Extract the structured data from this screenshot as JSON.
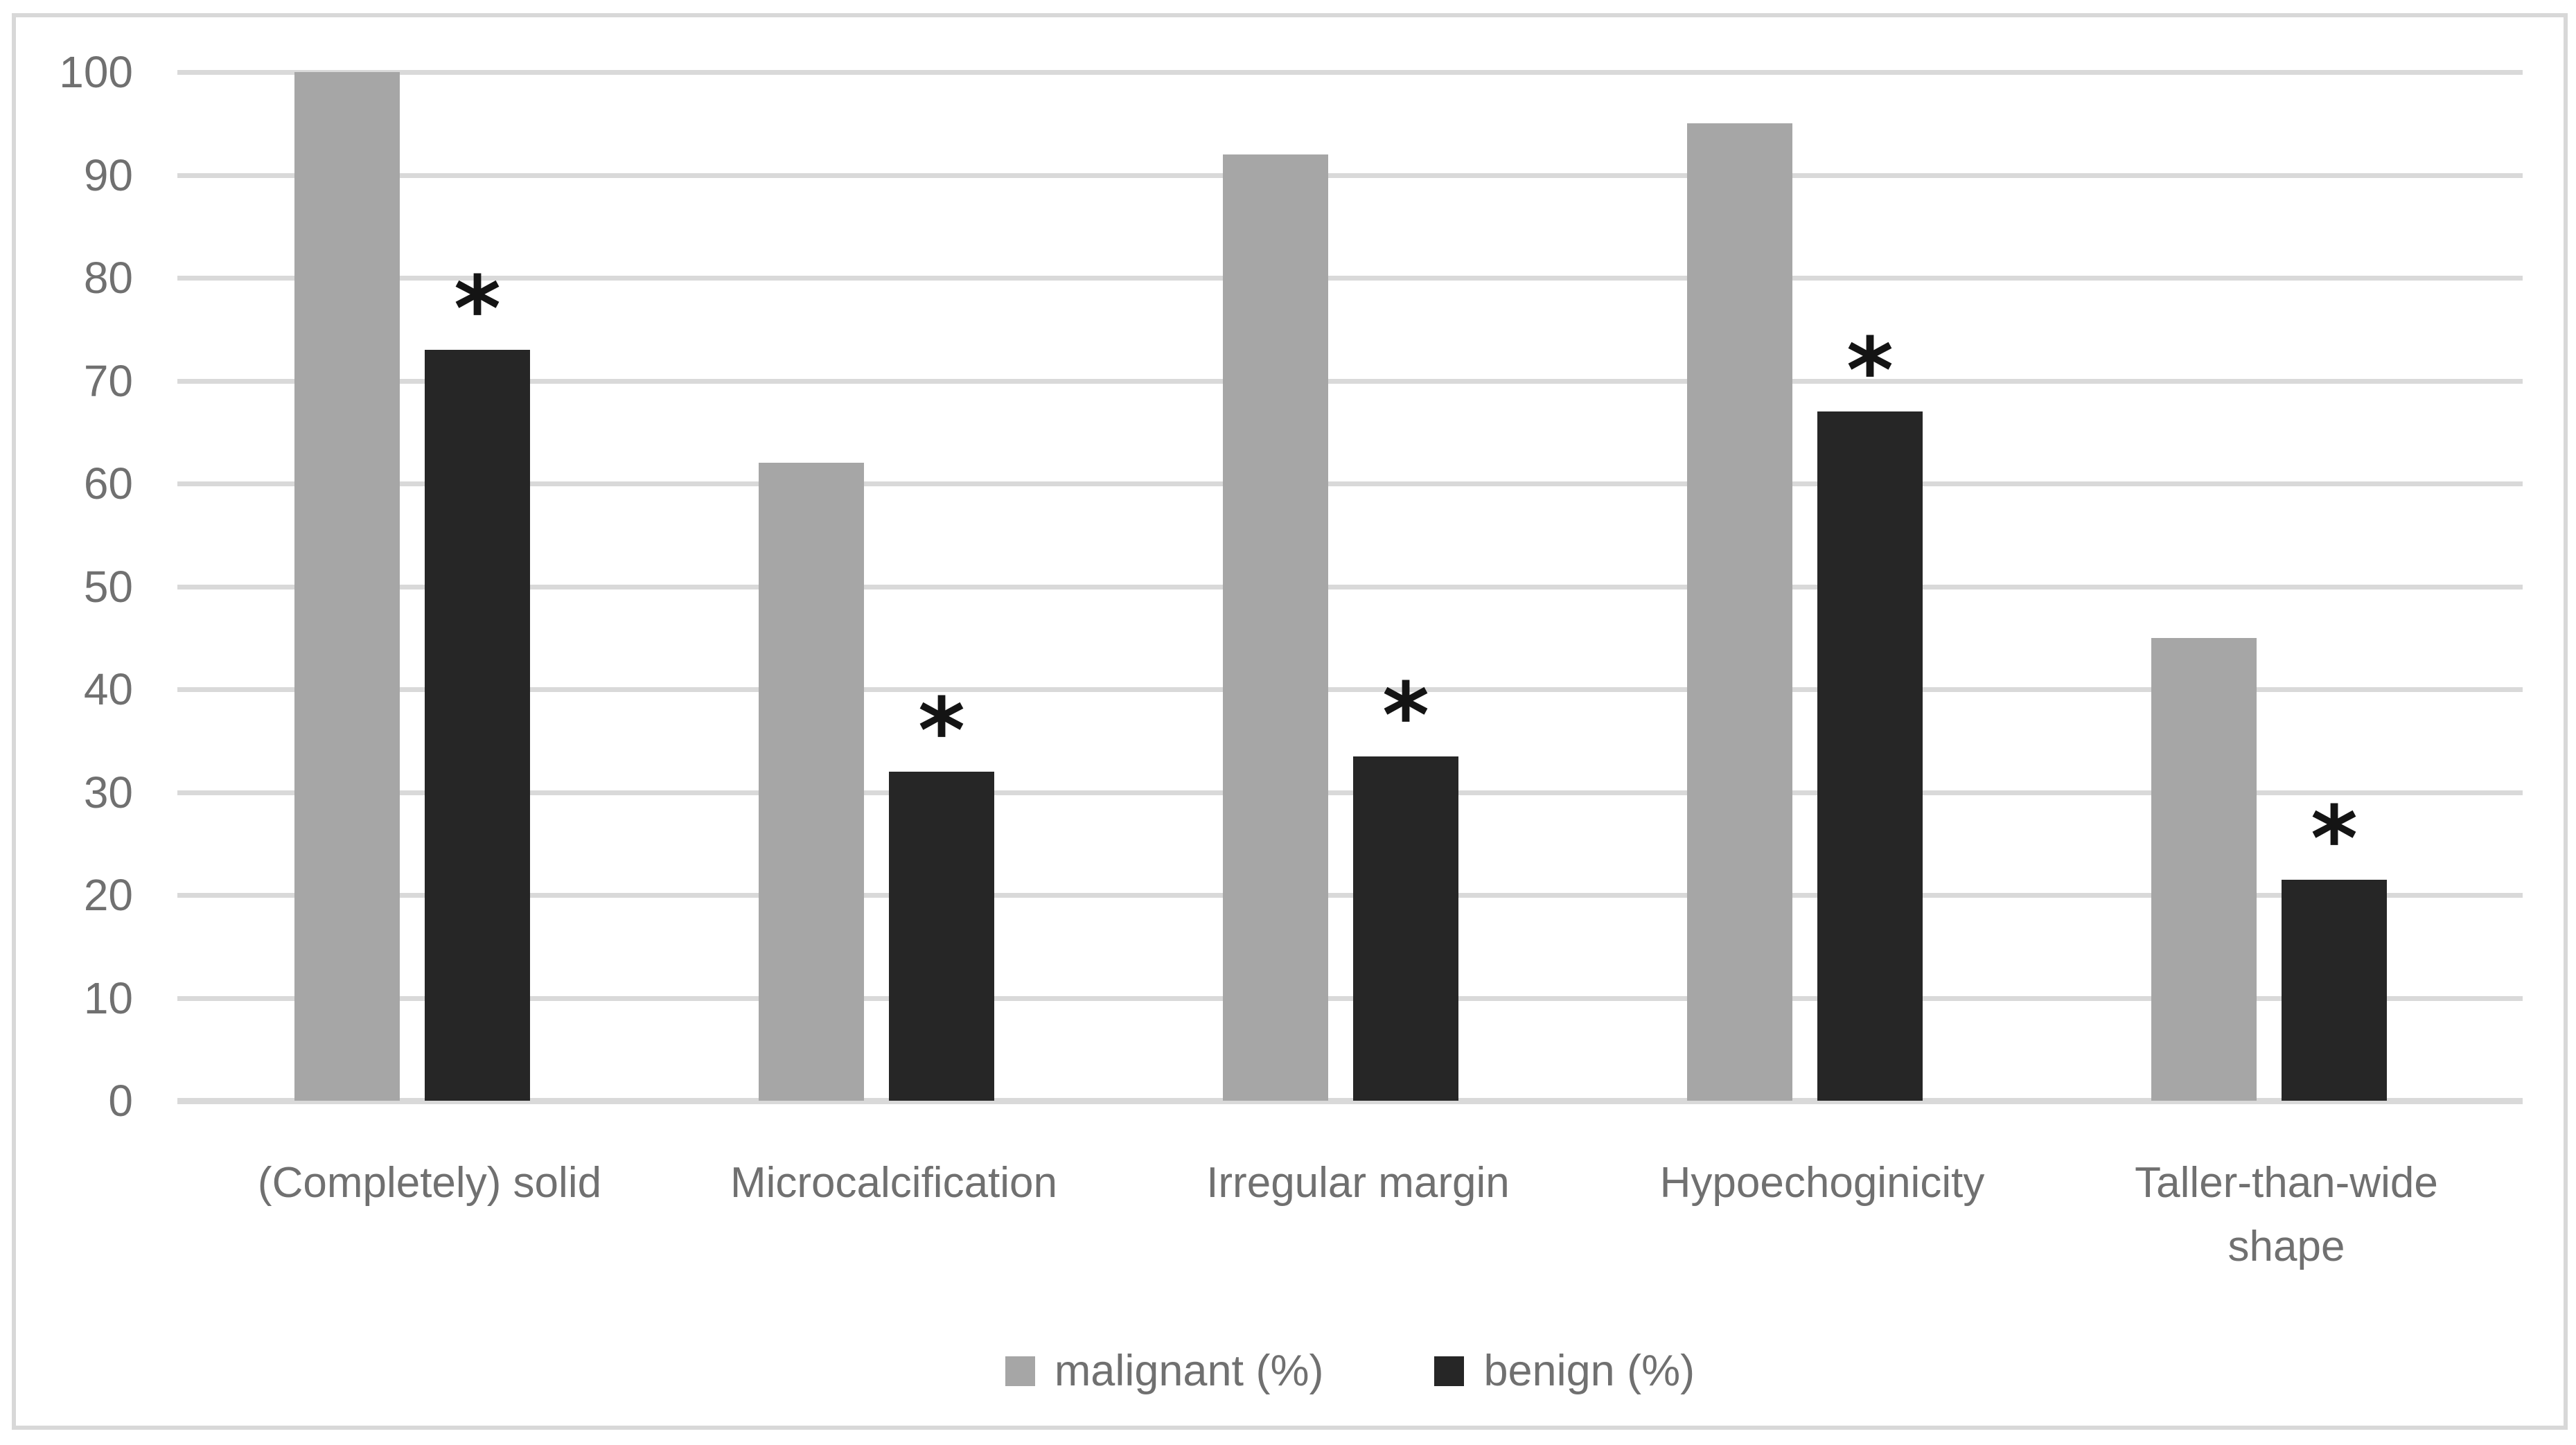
{
  "chart_data": {
    "type": "bar",
    "title": "",
    "xlabel": "",
    "ylabel": "",
    "categories": [
      "(Completely) solid",
      "Microcalcification",
      "Irregular margin",
      "Hypoechoginicity",
      "Taller-than-wide\nshape"
    ],
    "series": [
      {
        "name": "malignant (%)",
        "color": "#a6a6a6",
        "values": [
          100,
          62,
          92,
          95,
          45
        ]
      },
      {
        "name": "benign (%)",
        "color": "#262626",
        "values": [
          73,
          32,
          33.5,
          67,
          21.5
        ]
      }
    ],
    "annotation_symbol": "*",
    "significance_asterisks": {
      "series": "benign (%)",
      "categories": [
        true,
        true,
        true,
        true,
        true
      ]
    },
    "ylim": [
      0,
      100
    ],
    "yticks": [
      0,
      10,
      20,
      30,
      40,
      50,
      60,
      70,
      80,
      90,
      100
    ],
    "grid": "horizontal-only",
    "legend_position": "bottom-center",
    "colors": {
      "gridline": "#d9d9d9",
      "axis_line": "#d9d9d9",
      "axis_label": "#707070",
      "frame_border": "#d8d8d8",
      "background": "#ffffff",
      "asterisk": "#141414"
    }
  }
}
